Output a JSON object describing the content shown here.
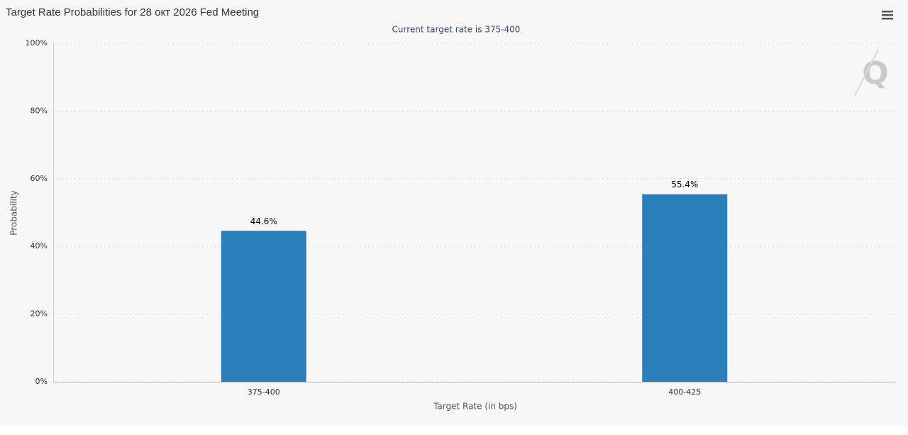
{
  "chart_data": {
    "type": "bar",
    "title": "Target Rate Probabilities for 28 окт 2026 Fed Meeting",
    "subtitle": "Current target rate is 375-400",
    "x_label": "Target Rate (in bps)",
    "y_label": "Probability",
    "categories": [
      "375-400",
      "400-425"
    ],
    "values": [
      44.6,
      55.4
    ],
    "value_labels": [
      "44.6%",
      "55.4%"
    ],
    "color": "#2a7fba",
    "ylim": [
      0,
      100
    ],
    "yticks": [
      {
        "value": 0,
        "label": "0%"
      },
      {
        "value": 20,
        "label": "20%"
      },
      {
        "value": 40,
        "label": "40%"
      },
      {
        "value": 60,
        "label": "60%"
      },
      {
        "value": 80,
        "label": "80%"
      },
      {
        "value": 100,
        "label": "100%"
      }
    ],
    "grid": true
  }
}
